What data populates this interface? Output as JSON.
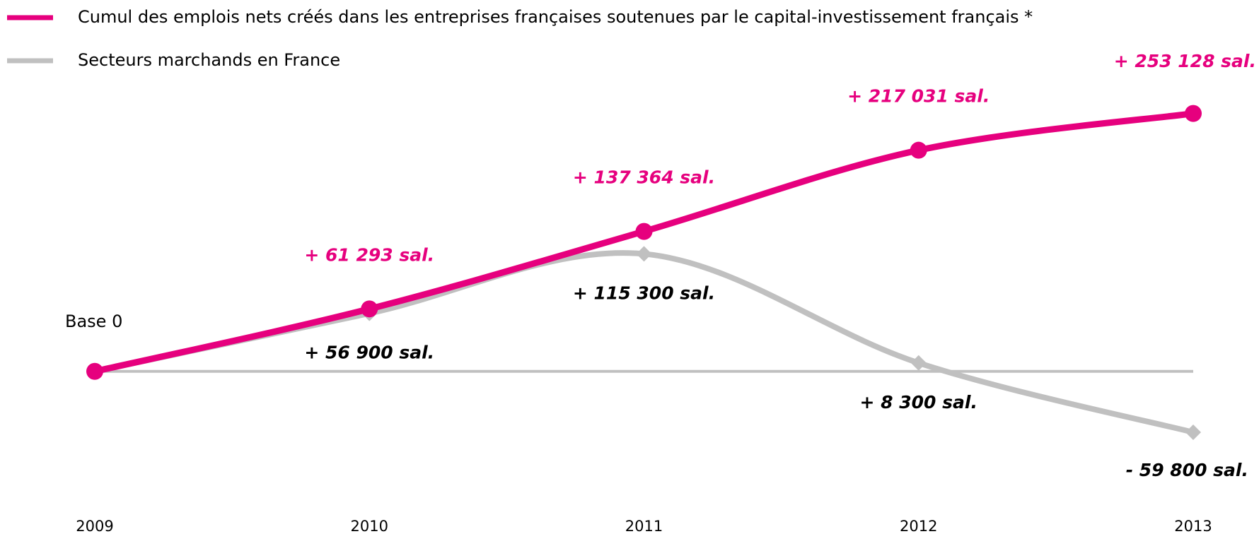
{
  "chart_data": {
    "type": "line",
    "categories": [
      "2009",
      "2010",
      "2011",
      "2012",
      "2013"
    ],
    "series": [
      {
        "name": "Cumul des emplois nets créés dans les entreprises françaises soutenues par le capital-investissement français *",
        "color": "#e6007e",
        "values": [
          0,
          61293,
          137364,
          217031,
          253128
        ],
        "value_labels": [
          null,
          "+ 61 293 sal.",
          "+ 137 364 sal.",
          "+ 217 031 sal.",
          "+ 253 128 sal."
        ]
      },
      {
        "name": "Secteurs marchands en France",
        "color": "#c0c0c0",
        "values": [
          0,
          56900,
          115300,
          8300,
          -59800
        ],
        "value_labels": [
          "Base 0",
          "+ 56 900 sal.",
          "+ 115 300 sal.",
          "+ 8 300 sal.",
          "- 59 800 sal."
        ]
      }
    ],
    "ylim": [
      -100000,
      300000
    ]
  }
}
